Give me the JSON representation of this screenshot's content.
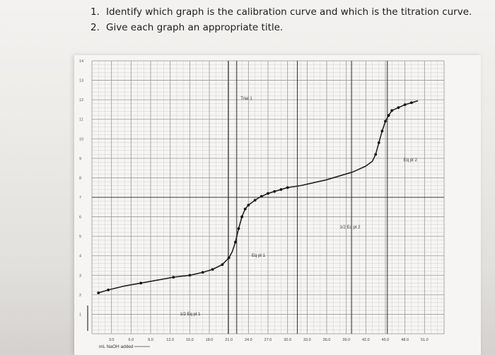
{
  "questions": [
    {
      "number": "1.",
      "text": "Identify which graph is the calibration curve and which is the titration curve."
    },
    {
      "number": "2.",
      "text": "Give each graph an appropriate title."
    }
  ],
  "chart_data": {
    "type": "line",
    "title": "",
    "xlabel": "mL NaOH added",
    "ylabel": "",
    "xlim": [
      0,
      54
    ],
    "ylim": [
      0,
      14
    ],
    "grid": true,
    "x_ticks": [
      3,
      6,
      9,
      12,
      15,
      18,
      21,
      24,
      27,
      30,
      33,
      36,
      39,
      42,
      45,
      48,
      51
    ],
    "x_tick_labels": [
      "3.0",
      "6.0",
      "9.0",
      "12.0",
      "15.0",
      "18.0",
      "21.0",
      "24.0",
      "27.0",
      "30.0",
      "33.0",
      "36.0",
      "39.0",
      "42.0",
      "45.0",
      "48.0",
      "51.0"
    ],
    "y_ticks": [
      1,
      2,
      3,
      4,
      5,
      6,
      7,
      8,
      9,
      10,
      11,
      12,
      13,
      14
    ],
    "y_tick_labels": [
      "1",
      "2",
      "3",
      "4",
      "5",
      "6",
      "7",
      "8",
      "9",
      "10",
      "11",
      "12",
      "13",
      "14"
    ],
    "series": [
      {
        "name": "Trial 1",
        "x": [
          1,
          2.5,
          5,
          7.5,
          10,
          12.5,
          15,
          17,
          18.5,
          20,
          21,
          21.5,
          22,
          22.5,
          23,
          23.5,
          24,
          25,
          26,
          27,
          28,
          29,
          30,
          32,
          34,
          36,
          38,
          40,
          42,
          43,
          43.5,
          44,
          44.5,
          45,
          45.5,
          46,
          47,
          48,
          49,
          50
        ],
        "y": [
          2.1,
          2.25,
          2.45,
          2.6,
          2.75,
          2.9,
          3.0,
          3.15,
          3.3,
          3.55,
          3.9,
          4.2,
          4.7,
          5.4,
          6.0,
          6.4,
          6.6,
          6.85,
          7.05,
          7.2,
          7.3,
          7.4,
          7.5,
          7.6,
          7.75,
          7.9,
          8.1,
          8.3,
          8.6,
          8.85,
          9.2,
          9.8,
          10.4,
          10.9,
          11.2,
          11.45,
          11.6,
          11.75,
          11.85,
          11.95
        ]
      }
    ],
    "markers_x": [
      1,
      2.5,
      7.5,
      12.5,
      15,
      17,
      18.5,
      20,
      21,
      22,
      22.5,
      23,
      23.5,
      24,
      25,
      26,
      27,
      28,
      29,
      30,
      43.5,
      44,
      44.5,
      45,
      45.5,
      46,
      47,
      48,
      49
    ],
    "reference_lines": {
      "horizontal_y": 7.0,
      "vertical_x": [
        20.9,
        22.2,
        31.5,
        39.8,
        45.3
      ]
    },
    "annotations": [
      {
        "text": "Trial 1",
        "x": 22.8,
        "y": 12.0
      },
      {
        "text": "Eq pt 2",
        "x": 47.8,
        "y": 8.85
      },
      {
        "text": "1/2 Eq pt 2",
        "x": 38.0,
        "y": 5.4
      },
      {
        "text": "Eq pt 1",
        "x": 24.5,
        "y": 3.95
      },
      {
        "text": "1/2 Eq pt 1",
        "x": 13.5,
        "y": 0.95
      }
    ]
  }
}
